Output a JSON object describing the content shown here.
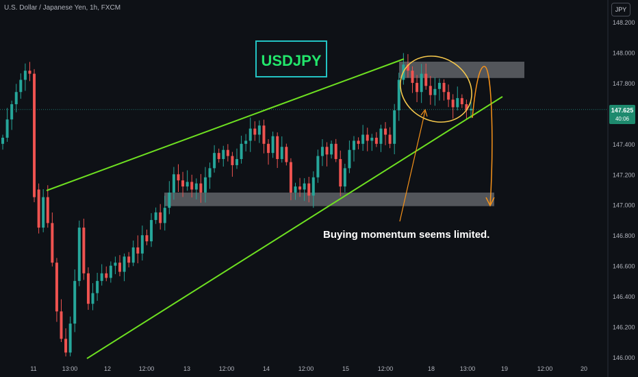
{
  "header": {
    "symbol": "U.S. Dollar / Japanese Yen, 1h, FXCM"
  },
  "currency_button": "JPY",
  "title_box": "USDJPY",
  "annotation": "Buying momentum seems limited.",
  "price_label": {
    "price": "147.625",
    "countdown": "40:06"
  },
  "colors": {
    "background": "#0e1116",
    "up": "#26a69a",
    "down": "#ef5350",
    "channel": "#6ee021",
    "ellipse": "#f5c84c",
    "arrow": "#f7931a",
    "zone": "#6b6d73",
    "title_text": "#22e66b",
    "price_badge": "#1e8a6e"
  },
  "chart_data": {
    "type": "candlestick",
    "ylim": [
      146.0,
      148.2
    ],
    "y_ticks": [
      "148.200",
      "148.000",
      "147.800",
      "147.600",
      "147.400",
      "147.200",
      "147.000",
      "146.800",
      "146.600",
      "146.400",
      "146.200",
      "146.000"
    ],
    "x_ticks": [
      "11",
      "13:00",
      "12",
      "12:00",
      "13",
      "12:00",
      "14",
      "12:00",
      "15",
      "12:00",
      "18",
      "13:00",
      "19",
      "12:00",
      "20"
    ],
    "current_price": 147.625,
    "resistance_zone": [
      147.85,
      147.93
    ],
    "support_zone": [
      147.0,
      147.08
    ],
    "close_series": [
      147.44,
      147.56,
      147.66,
      147.74,
      147.82,
      147.88,
      147.86,
      147.05,
      146.85,
      147.05,
      146.88,
      146.62,
      146.3,
      146.12,
      146.03,
      146.22,
      146.5,
      146.85,
      146.55,
      146.35,
      146.42,
      146.5,
      146.55,
      146.52,
      146.6,
      146.62,
      146.56,
      146.66,
      146.62,
      146.72,
      146.68,
      146.8,
      146.76,
      146.9,
      146.95,
      146.88,
      146.98,
      147.08,
      147.2,
      147.16,
      147.12,
      147.15,
      147.1,
      147.14,
      147.08,
      147.18,
      147.24,
      147.34,
      147.3,
      147.36,
      147.32,
      147.26,
      147.3,
      147.4,
      147.42,
      147.5,
      147.46,
      147.52,
      147.4,
      147.34,
      147.45,
      147.3,
      147.38,
      147.28,
      147.08,
      147.12,
      147.1,
      147.14,
      147.06,
      147.18,
      147.32,
      147.38,
      147.33,
      147.4,
      147.3,
      147.12,
      147.24,
      147.36,
      147.42,
      147.4,
      147.46,
      147.42,
      147.44,
      147.4,
      147.5,
      147.46,
      147.4,
      147.62,
      147.82,
      147.92,
      147.88,
      147.8,
      147.74,
      147.86,
      147.78,
      147.72,
      147.76,
      147.8,
      147.74,
      147.69,
      147.64,
      147.7,
      147.66,
      147.62,
      147.63
    ]
  }
}
